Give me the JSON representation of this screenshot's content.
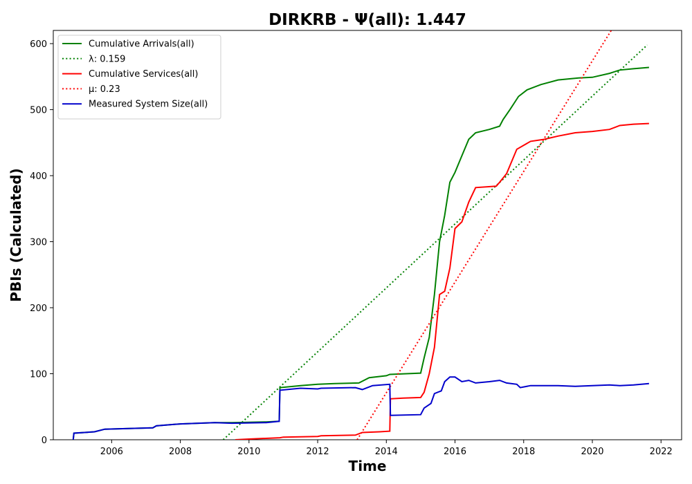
{
  "chart_data": {
    "type": "line",
    "title": "DIRKRB -  Ψ(all): 1.447",
    "xlabel": "Time",
    "ylabel": "PBIs (Calculated)",
    "xlim": [
      2004.3,
      2022.6
    ],
    "ylim": [
      0,
      620
    ],
    "x_ticks": [
      2006,
      2008,
      2010,
      2012,
      2014,
      2016,
      2018,
      2020,
      2022
    ],
    "y_ticks": [
      0,
      100,
      200,
      300,
      400,
      500,
      600
    ],
    "grid": false,
    "legend_position": "top-left",
    "series": [
      {
        "name": "Cumulative Arrivals(all)",
        "color": "#008000",
        "style": "solid",
        "points": [
          [
            2004.88,
            0
          ],
          [
            2004.9,
            10
          ],
          [
            2005.5,
            12
          ],
          [
            2005.8,
            16
          ],
          [
            2007.2,
            18
          ],
          [
            2007.3,
            21
          ],
          [
            2008.0,
            24
          ],
          [
            2009.0,
            26
          ],
          [
            2009.5,
            26
          ],
          [
            2010.5,
            27
          ],
          [
            2010.88,
            28
          ],
          [
            2010.9,
            79
          ],
          [
            2011.5,
            82
          ],
          [
            2012.0,
            84
          ],
          [
            2012.5,
            85
          ],
          [
            2013.2,
            86
          ],
          [
            2013.5,
            94
          ],
          [
            2014.0,
            97
          ],
          [
            2014.1,
            99
          ],
          [
            2015.0,
            101
          ],
          [
            2015.1,
            124
          ],
          [
            2015.25,
            155
          ],
          [
            2015.4,
            220
          ],
          [
            2015.55,
            300
          ],
          [
            2015.7,
            340
          ],
          [
            2015.85,
            390
          ],
          [
            2016.0,
            405
          ],
          [
            2016.2,
            430
          ],
          [
            2016.4,
            455
          ],
          [
            2016.6,
            465
          ],
          [
            2017.0,
            470
          ],
          [
            2017.3,
            475
          ],
          [
            2017.4,
            485
          ],
          [
            2017.6,
            500
          ],
          [
            2017.85,
            520
          ],
          [
            2018.1,
            530
          ],
          [
            2018.5,
            538
          ],
          [
            2019.0,
            545
          ],
          [
            2019.6,
            548
          ],
          [
            2020.0,
            549
          ],
          [
            2020.5,
            555
          ],
          [
            2020.8,
            560
          ],
          [
            2021.2,
            562
          ],
          [
            2021.65,
            564
          ]
        ]
      },
      {
        "name": "λ: 0.159",
        "color": "#008000",
        "style": "dotted",
        "points": [
          [
            2009.25,
            0
          ],
          [
            2021.6,
            598
          ]
        ]
      },
      {
        "name": "Cumulative Services(all)",
        "color": "#ff0000",
        "style": "solid",
        "points": [
          [
            2009.6,
            0
          ],
          [
            2010.0,
            1
          ],
          [
            2010.9,
            3
          ],
          [
            2011.0,
            4
          ],
          [
            2012.0,
            5
          ],
          [
            2012.1,
            6
          ],
          [
            2013.1,
            7
          ],
          [
            2013.3,
            11
          ],
          [
            2013.8,
            12
          ],
          [
            2014.1,
            13
          ],
          [
            2014.12,
            62
          ],
          [
            2014.5,
            63
          ],
          [
            2015.0,
            64
          ],
          [
            2015.1,
            72
          ],
          [
            2015.25,
            100
          ],
          [
            2015.4,
            140
          ],
          [
            2015.55,
            220
          ],
          [
            2015.7,
            225
          ],
          [
            2015.85,
            260
          ],
          [
            2016.0,
            320
          ],
          [
            2016.2,
            330
          ],
          [
            2016.4,
            360
          ],
          [
            2016.6,
            382
          ],
          [
            2017.2,
            384
          ],
          [
            2017.3,
            390
          ],
          [
            2017.5,
            403
          ],
          [
            2017.8,
            440
          ],
          [
            2018.2,
            452
          ],
          [
            2018.6,
            455
          ],
          [
            2019.0,
            460
          ],
          [
            2019.5,
            465
          ],
          [
            2020.0,
            467
          ],
          [
            2020.5,
            470
          ],
          [
            2020.8,
            476
          ],
          [
            2021.2,
            478
          ],
          [
            2021.65,
            479
          ]
        ]
      },
      {
        "name": "μ: 0.23",
        "color": "#ff0000",
        "style": "dotted",
        "points": [
          [
            2013.15,
            0
          ],
          [
            2020.55,
            620
          ]
        ]
      },
      {
        "name": "Measured System Size(all)",
        "color": "#0000cc",
        "style": "solid",
        "points": [
          [
            2004.88,
            0
          ],
          [
            2004.9,
            10
          ],
          [
            2005.5,
            12
          ],
          [
            2005.8,
            16
          ],
          [
            2007.2,
            18
          ],
          [
            2007.3,
            21
          ],
          [
            2008.0,
            24
          ],
          [
            2009.0,
            26
          ],
          [
            2009.5,
            25
          ],
          [
            2010.5,
            26
          ],
          [
            2010.88,
            28
          ],
          [
            2010.9,
            75
          ],
          [
            2011.5,
            78
          ],
          [
            2012.0,
            77
          ],
          [
            2012.1,
            78
          ],
          [
            2013.1,
            79
          ],
          [
            2013.3,
            76
          ],
          [
            2013.6,
            82
          ],
          [
            2014.1,
            84
          ],
          [
            2014.12,
            37
          ],
          [
            2015.0,
            38
          ],
          [
            2015.1,
            48
          ],
          [
            2015.3,
            55
          ],
          [
            2015.4,
            70
          ],
          [
            2015.6,
            74
          ],
          [
            2015.7,
            88
          ],
          [
            2015.85,
            95
          ],
          [
            2016.0,
            95
          ],
          [
            2016.2,
            88
          ],
          [
            2016.4,
            90
          ],
          [
            2016.6,
            86
          ],
          [
            2017.0,
            88
          ],
          [
            2017.3,
            90
          ],
          [
            2017.5,
            86
          ],
          [
            2017.8,
            84
          ],
          [
            2017.9,
            79
          ],
          [
            2018.2,
            82
          ],
          [
            2018.6,
            82
          ],
          [
            2019.0,
            82
          ],
          [
            2019.5,
            81
          ],
          [
            2020.0,
            82
          ],
          [
            2020.5,
            83
          ],
          [
            2020.8,
            82
          ],
          [
            2021.2,
            83
          ],
          [
            2021.65,
            85
          ]
        ]
      }
    ]
  }
}
